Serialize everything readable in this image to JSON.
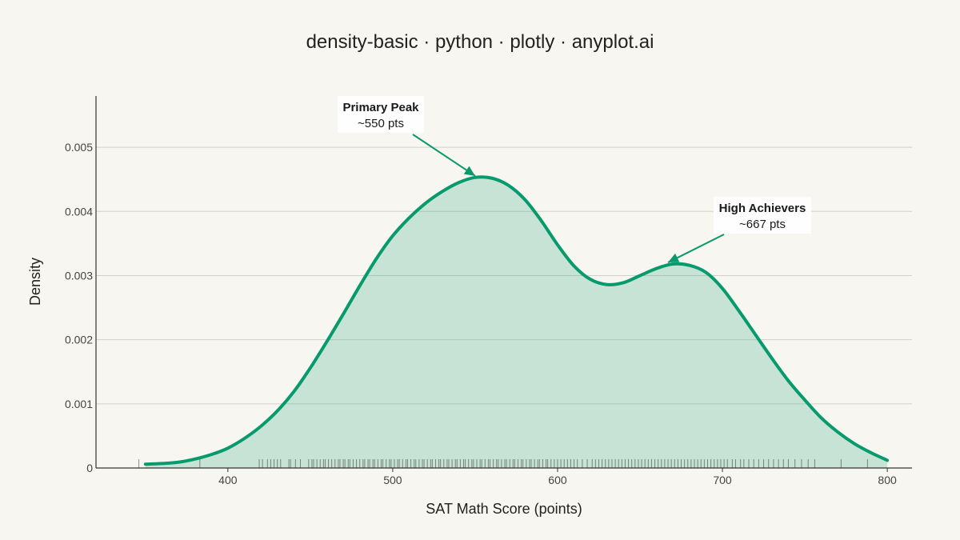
{
  "chart_data": {
    "type": "area",
    "title": "density-basic · python · plotly · anyplot.ai",
    "xlabel": "SAT Math Score (points)",
    "ylabel": "Density",
    "xlim": [
      320,
      815
    ],
    "ylim": [
      0,
      0.0058
    ],
    "x_ticks": [
      400,
      500,
      600,
      700,
      800
    ],
    "y_ticks": [
      0,
      0.001,
      0.002,
      0.003,
      0.004,
      0.005
    ],
    "y_tick_labels": [
      "0",
      "0.001",
      "0.002",
      "0.003",
      "0.004",
      "0.005"
    ],
    "grid": true,
    "colors": {
      "line": "#079a6c",
      "fill": "#079a6c",
      "rug": "#333333",
      "grid": "#d2d0cb",
      "annotation_bg": "#ffffff"
    },
    "series": [
      {
        "x": [
          350,
          360,
          370,
          380,
          390,
          400,
          410,
          420,
          430,
          440,
          450,
          460,
          470,
          480,
          490,
          500,
          510,
          520,
          530,
          540,
          550,
          560,
          570,
          580,
          590,
          600,
          610,
          620,
          630,
          640,
          650,
          660,
          670,
          680,
          690,
          700,
          710,
          720,
          730,
          740,
          750,
          760,
          770,
          780,
          790,
          800
        ],
        "y": [
          6e-05,
          7e-05,
          9e-05,
          0.00014,
          0.00021,
          0.00031,
          0.00046,
          0.00065,
          0.00089,
          0.00119,
          0.00156,
          0.00197,
          0.0024,
          0.00284,
          0.00326,
          0.00362,
          0.0039,
          0.00413,
          0.00431,
          0.00445,
          0.00453,
          0.00452,
          0.00441,
          0.00419,
          0.00386,
          0.00348,
          0.00315,
          0.00294,
          0.00286,
          0.00289,
          0.003,
          0.00311,
          0.00318,
          0.00316,
          0.00305,
          0.0028,
          0.00245,
          0.00208,
          0.00171,
          0.00136,
          0.00106,
          0.00078,
          0.00056,
          0.00038,
          0.00024,
          0.00012
        ]
      }
    ],
    "rug_x": [
      346,
      383,
      419,
      421,
      424,
      426,
      428,
      430,
      432,
      437,
      438,
      441,
      444,
      449,
      451,
      452,
      454,
      456,
      458,
      459,
      461,
      463,
      465,
      467,
      468,
      470,
      471,
      473,
      474,
      476,
      478,
      480,
      482,
      483,
      485,
      486,
      488,
      489,
      491,
      493,
      494,
      496,
      498,
      499,
      501,
      503,
      504,
      506,
      508,
      509,
      511,
      513,
      514,
      516,
      518,
      519,
      521,
      523,
      524,
      526,
      528,
      529,
      531,
      533,
      534,
      536,
      538,
      539,
      541,
      543,
      544,
      546,
      548,
      549,
      551,
      553,
      554,
      556,
      558,
      559,
      561,
      563,
      564,
      566,
      568,
      569,
      571,
      573,
      574,
      576,
      578,
      579,
      581,
      583,
      584,
      586,
      588,
      589,
      591,
      593,
      594,
      596,
      598,
      600,
      602,
      604,
      606,
      608,
      610,
      612,
      615,
      618,
      621,
      623,
      625,
      627,
      629,
      631,
      633,
      635,
      637,
      639,
      641,
      643,
      645,
      647,
      649,
      651,
      653,
      655,
      657,
      659,
      661,
      663,
      665,
      667,
      669,
      671,
      673,
      675,
      677,
      679,
      681,
      683,
      685,
      687,
      689,
      691,
      693,
      695,
      697,
      699,
      701,
      703,
      706,
      708,
      711,
      713,
      716,
      719,
      722,
      725,
      728,
      731,
      734,
      737,
      740,
      744,
      748,
      752,
      756,
      772,
      788
    ],
    "annotations": [
      {
        "title": "Primary Peak",
        "text": "~550 pts",
        "x": 550,
        "y": 0.00453
      },
      {
        "title": "High Achievers",
        "text": "~667 pts",
        "x": 667,
        "y": 0.00318
      }
    ]
  }
}
